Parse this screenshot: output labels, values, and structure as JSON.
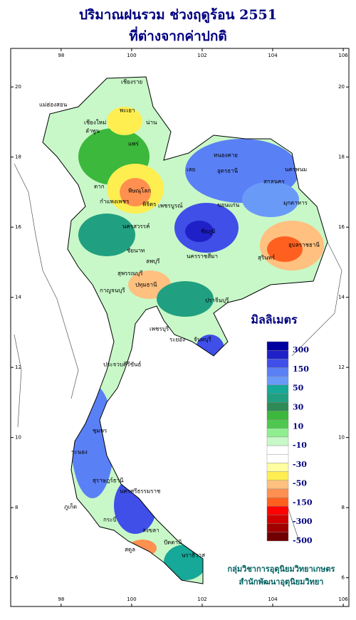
{
  "title": [
    "ปริมาณฝนรวม ช่วงฤดูร้อน 2551",
    "ที่ต่างจากค่าปกติ"
  ],
  "map": {
    "lon_range": [
      96.57,
      106.16
    ],
    "lat_range": [
      21.1,
      5.18
    ],
    "lon_ticks": [
      98,
      100,
      102,
      104,
      106
    ],
    "lat_ticks": [
      20,
      18,
      16,
      14,
      12,
      10,
      8,
      6
    ]
  },
  "legend": {
    "title": "มิลลิเมตร",
    "colors": [
      "#0000a0",
      "#2020c8",
      "#3f4fe8",
      "#5a80f5",
      "#6a9af8",
      "#16a898",
      "#20a080",
      "#2e8b57",
      "#3cb83c",
      "#50c850",
      "#90ee90",
      "#c8f8c8",
      "#ffffff",
      "#ffffff",
      "#ffffa0",
      "#ffee50",
      "#ffc080",
      "#ff9050",
      "#ff6020",
      "#ff0000",
      "#d00000",
      "#a00000",
      "#700000"
    ],
    "labels": [
      300,
      150,
      50,
      30,
      10,
      -10,
      -30,
      -50,
      -150,
      -300,
      -500
    ]
  },
  "provinces": [
    "เชียงราย",
    "พะเยา",
    "แม่ฮ่องสอน",
    "เชียงใหม่",
    "ลำพูน",
    "น่าน",
    "แพร่",
    "ตาก",
    "พิษณุโลก",
    "กำแพงเพชร",
    "พิจิตร",
    "เพชรบูรณ์",
    "นครสวรรค์",
    "ชัยนาท",
    "ลพบุรี",
    "สุพรรณบุรี",
    "กาญจนบุรี",
    "ปทุมธานี",
    "เพชรบุรี",
    "ประจวบคีรีขันธ์",
    "ชุมพร",
    "ระนอง",
    "สุราษฎร์ธานี",
    "นครศรีธรรมราช",
    "ภูเก็ต",
    "กระบี่",
    "สงขลา",
    "สตูล",
    "ปัตตานี",
    "นราธิวาส",
    "เลย",
    "หนองคาย",
    "อุดรธานี",
    "สกลนคร",
    "นครพนม",
    "มุกดาหาร",
    "ขอนแก่น",
    "ชัยภูมิ",
    "นครราชสีมา",
    "สุรินทร์",
    "อุบลราชธานี",
    "ปราจีนบุรี",
    "ระยอง",
    "จันทบุรี"
  ],
  "credits": [
    "กลุ่มวิชาการอุตุนิยมวิทยาเกษตร",
    "สำนักพัฒนาอุตุนิยมวิทยา"
  ]
}
